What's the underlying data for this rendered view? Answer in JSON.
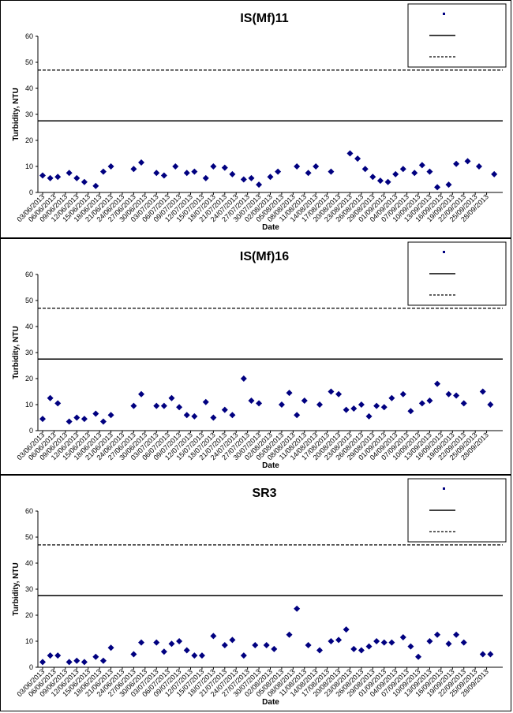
{
  "colors": {
    "marker": "#000080",
    "line": "#000000"
  },
  "chart_data": [
    {
      "type": "scatter",
      "title": "IS(Mf)11",
      "xlabel": "Date",
      "ylabel": "Turbidity, NTU",
      "ylim": [
        0,
        60
      ],
      "yticks": [
        0,
        10,
        20,
        30,
        40,
        50,
        60
      ],
      "xticks": [
        "03/06/2013",
        "06/06/2013",
        "09/06/2013",
        "12/06/2013",
        "15/06/2013",
        "18/06/2013",
        "21/06/2013",
        "24/06/2013",
        "27/06/2013",
        "30/06/2013",
        "03/07/2013",
        "06/07/2013",
        "09/07/2013",
        "12/07/2013",
        "15/07/2013",
        "18/07/2013",
        "21/07/2013",
        "24/07/2013",
        "27/07/2013",
        "30/07/2013",
        "02/08/2013",
        "05/08/2013",
        "08/08/2013",
        "11/08/2013",
        "14/08/2013",
        "17/08/2013",
        "20/08/2013",
        "23/08/2013",
        "26/08/2013",
        "29/08/2013",
        "01/09/2013",
        "04/09/2013",
        "07/09/2013",
        "10/09/2013",
        "13/09/2013",
        "16/09/2013",
        "19/09/2013",
        "22/09/2013",
        "25/09/2013",
        "28/09/2013"
      ],
      "xlim_day": [
        0,
        120
      ],
      "hlines": [
        {
          "y": 27.5,
          "style": "solid"
        },
        {
          "y": 47,
          "style": "dashed"
        }
      ],
      "legend": {
        "position": "top-right"
      },
      "series": [
        {
          "x": [
            0,
            2,
            4,
            7,
            9,
            11,
            14,
            16,
            18,
            24,
            26,
            30,
            32,
            35,
            38,
            40,
            43,
            45,
            48,
            50,
            53,
            55,
            57,
            60,
            62,
            67,
            70,
            72,
            76,
            81,
            83,
            85,
            87,
            89,
            91,
            93,
            95,
            98,
            100,
            102,
            104,
            107,
            109,
            112,
            115,
            119
          ],
          "y": [
            6.5,
            5.5,
            6,
            7.5,
            5.5,
            4,
            2.5,
            8,
            10,
            9,
            11.5,
            7.5,
            6.5,
            10,
            7.5,
            8,
            5.5,
            10,
            9.5,
            7,
            5,
            5.5,
            3,
            6,
            8,
            10,
            7.5,
            10,
            8,
            15,
            13,
            9,
            6,
            4.5,
            4,
            7,
            9,
            7.5,
            10.5,
            8,
            2,
            3,
            11,
            12,
            10,
            7
          ]
        }
      ]
    },
    {
      "type": "scatter",
      "title": "IS(Mf)16",
      "xlabel": "Date",
      "ylabel": "Turbidity, NTU",
      "ylim": [
        0,
        60
      ],
      "yticks": [
        0,
        10,
        20,
        30,
        40,
        50,
        60
      ],
      "xticks": [
        "03/06/2013",
        "06/06/2013",
        "09/06/2013",
        "12/06/2013",
        "15/06/2013",
        "18/06/2013",
        "21/06/2013",
        "24/06/2013",
        "27/06/2013",
        "30/06/2013",
        "03/07/2013",
        "06/07/2013",
        "09/07/2013",
        "12/07/2013",
        "15/07/2013",
        "18/07/2013",
        "21/07/2013",
        "24/07/2013",
        "27/07/2013",
        "30/07/2013",
        "02/08/2013",
        "05/08/2013",
        "08/08/2013",
        "11/08/2013",
        "14/08/2013",
        "17/08/2013",
        "20/08/2013",
        "23/08/2013",
        "26/08/2013",
        "29/08/2013",
        "01/09/2013",
        "04/09/2013",
        "07/09/2013",
        "10/09/2013",
        "13/09/2013",
        "16/09/2013",
        "19/09/2013",
        "22/09/2013",
        "25/09/2013",
        "28/09/2013"
      ],
      "xlim_day": [
        0,
        120
      ],
      "hlines": [
        {
          "y": 27.5,
          "style": "solid"
        },
        {
          "y": 47,
          "style": "dashed"
        }
      ],
      "legend": {
        "position": "top-right"
      },
      "series": [
        {
          "x": [
            0,
            2,
            4,
            7,
            9,
            11,
            14,
            16,
            18,
            24,
            26,
            30,
            32,
            34,
            36,
            38,
            40,
            43,
            45,
            48,
            50,
            53,
            55,
            57,
            63,
            65,
            67,
            69,
            73,
            76,
            78,
            80,
            82,
            84,
            86,
            88,
            90,
            92,
            95,
            97,
            100,
            102,
            104,
            107,
            109,
            111,
            116,
            118
          ],
          "y": [
            4.5,
            12.5,
            10.5,
            3.5,
            5,
            4.5,
            6.5,
            3.5,
            6,
            9.5,
            14,
            9.5,
            9.5,
            12.5,
            9,
            6,
            5.5,
            11,
            5,
            8,
            6,
            20,
            11.5,
            10.5,
            10,
            14.5,
            6,
            11.5,
            10,
            15,
            14,
            8,
            8.5,
            10,
            5.5,
            9.5,
            9,
            12.5,
            14,
            7.5,
            10.5,
            11.5,
            18,
            14,
            13.5,
            10.5,
            15,
            10
          ]
        }
      ]
    },
    {
      "type": "scatter",
      "title": "SR3",
      "xlabel": "Date",
      "ylabel": "Turbidity, NTU",
      "ylim": [
        0,
        60
      ],
      "yticks": [
        0,
        10,
        20,
        30,
        40,
        50,
        60
      ],
      "xticks": [
        "03/06/2013",
        "06/06/2013",
        "09/06/2013",
        "12/06/2013",
        "15/06/2013",
        "18/06/2013",
        "21/06/2013",
        "24/06/2013",
        "27/06/2013",
        "30/06/2013",
        "03/07/2013",
        "06/07/2013",
        "09/07/2013",
        "12/07/2013",
        "15/07/2013",
        "18/07/2013",
        "21/07/2013",
        "24/07/2013",
        "27/07/2013",
        "30/07/2013",
        "02/08/2013",
        "05/08/2013",
        "08/08/2013",
        "11/08/2013",
        "14/08/2013",
        "17/08/2013",
        "20/08/2013",
        "23/08/2013",
        "26/08/2013",
        "29/08/2013",
        "01/09/2013",
        "04/09/2013",
        "07/09/2013",
        "10/09/2013",
        "13/09/2013",
        "16/09/2013",
        "19/09/2013",
        "22/09/2013",
        "25/09/2013",
        "28/09/2013"
      ],
      "xlim_day": [
        0,
        120
      ],
      "hlines": [
        {
          "y": 27.5,
          "style": "solid"
        },
        {
          "y": 47,
          "style": "dashed"
        }
      ],
      "legend": {
        "position": "top-right"
      },
      "series": [
        {
          "x": [
            0,
            2,
            4,
            7,
            9,
            11,
            14,
            16,
            18,
            24,
            26,
            30,
            32,
            34,
            36,
            38,
            40,
            42,
            45,
            48,
            50,
            53,
            56,
            59,
            61,
            65,
            67,
            70,
            73,
            76,
            78,
            80,
            82,
            84,
            86,
            88,
            90,
            92,
            95,
            97,
            99,
            102,
            104,
            107,
            109,
            111,
            116,
            118
          ],
          "y": [
            2,
            4.5,
            4.5,
            2,
            2.5,
            2,
            4,
            2.5,
            7.5,
            5,
            9.5,
            9.5,
            6,
            9,
            10,
            6.5,
            4.5,
            4.5,
            12,
            8.5,
            10.5,
            4.5,
            8.5,
            8.5,
            7,
            12.5,
            22.5,
            8.5,
            6.5,
            10,
            10.5,
            14.5,
            7,
            6.5,
            8,
            10,
            9.5,
            9.5,
            11.5,
            8,
            4,
            10,
            12.5,
            9,
            12.5,
            9.5,
            5,
            5
          ]
        }
      ]
    }
  ]
}
